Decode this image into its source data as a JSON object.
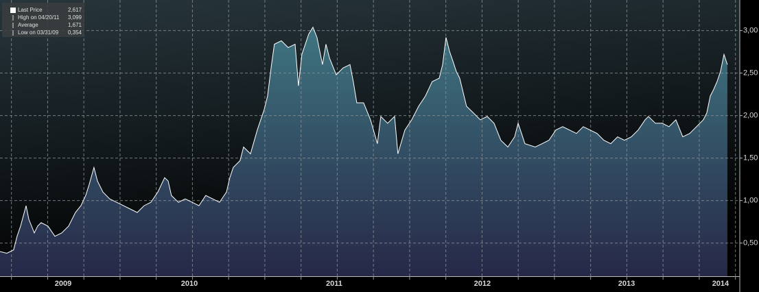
{
  "chart_data": {
    "type": "area",
    "color": "#ffffff",
    "fill_top": "#3f7580",
    "fill_bottom": "#262848",
    "legend": [
      {
        "name": "Last Price",
        "value": 2.617,
        "label": "2,617"
      },
      {
        "name": "High on 04/20/11",
        "value": 3.099,
        "label": "3,099"
      },
      {
        "name": "Average",
        "value": 1.671,
        "label": "1,671"
      },
      {
        "name": "Low on 03/31/09",
        "value": 0.354,
        "label": "0,354"
      }
    ],
    "x": [
      2009.171,
      2009.218,
      2009.265,
      2009.289,
      2009.313,
      2009.351,
      2009.37,
      2009.408,
      2009.431,
      2009.455,
      2009.502,
      2009.55,
      2009.597,
      2009.645,
      2009.692,
      2009.73,
      2009.763,
      2009.787,
      2009.82,
      2009.844,
      2009.882,
      2009.929,
      2009.976,
      2010.024,
      2010.071,
      2010.119,
      2010.166,
      2010.213,
      2010.261,
      2010.308,
      2010.332,
      2010.355,
      2010.403,
      2010.45,
      2010.498,
      2010.545,
      2010.592,
      2010.64,
      2010.687,
      2010.735,
      2010.758,
      2010.782,
      2010.829,
      2010.853,
      2010.901,
      2010.948,
      2010.995,
      2011.019,
      2011.043,
      2011.066,
      2011.114,
      2011.161,
      2011.209,
      2011.232,
      2011.256,
      2011.303,
      2011.332,
      2011.36,
      2011.398,
      2011.422,
      2011.446,
      2011.493,
      2011.54,
      2011.588,
      2011.611,
      2011.635,
      2011.682,
      2011.73,
      2011.777,
      2011.801,
      2011.848,
      2011.896,
      2011.919,
      2011.967,
      2012.014,
      2012.062,
      2012.109,
      2012.156,
      2012.204,
      2012.228,
      2012.251,
      2012.275,
      2012.299,
      2012.322,
      2012.346,
      2012.393,
      2012.441,
      2012.488,
      2012.536,
      2012.583,
      2012.63,
      2012.678,
      2012.725,
      2012.749,
      2012.796,
      2012.867,
      2012.915,
      2012.962,
      2013.01,
      2013.057,
      2013.104,
      2013.152,
      2013.199,
      2013.246,
      2013.294,
      2013.341,
      2013.389,
      2013.436,
      2013.483,
      2013.531,
      2013.578,
      2013.626,
      2013.649,
      2013.697,
      2013.744,
      2013.791,
      2013.839,
      2013.886,
      2013.934,
      2013.981,
      2014.028,
      2014.052,
      2014.076,
      2014.1,
      2014.123,
      2014.147,
      2014.171,
      2014.194
    ],
    "values": [
      0.4,
      0.38,
      0.42,
      0.58,
      0.7,
      0.94,
      0.78,
      0.62,
      0.7,
      0.74,
      0.7,
      0.58,
      0.62,
      0.7,
      0.86,
      0.94,
      1.06,
      1.19,
      1.39,
      1.23,
      1.1,
      1.02,
      0.98,
      0.94,
      0.9,
      0.86,
      0.94,
      0.98,
      1.1,
      1.27,
      1.23,
      1.06,
      0.98,
      1.02,
      0.98,
      0.94,
      1.06,
      1.02,
      0.98,
      1.1,
      1.27,
      1.39,
      1.47,
      1.63,
      1.55,
      1.83,
      2.07,
      2.23,
      2.56,
      2.84,
      2.88,
      2.8,
      2.84,
      2.35,
      2.72,
      2.96,
      3.04,
      2.92,
      2.6,
      2.84,
      2.68,
      2.48,
      2.56,
      2.6,
      2.4,
      2.15,
      2.15,
      1.95,
      1.67,
      1.99,
      1.91,
      1.99,
      1.55,
      1.83,
      1.95,
      2.11,
      2.23,
      2.4,
      2.44,
      2.6,
      2.92,
      2.76,
      2.64,
      2.52,
      2.44,
      2.11,
      2.03,
      1.95,
      1.99,
      1.91,
      1.71,
      1.63,
      1.75,
      1.91,
      1.67,
      1.63,
      1.67,
      1.71,
      1.83,
      1.87,
      1.83,
      1.79,
      1.87,
      1.83,
      1.79,
      1.71,
      1.67,
      1.75,
      1.71,
      1.75,
      1.83,
      1.95,
      1.99,
      1.91,
      1.91,
      1.87,
      1.95,
      1.75,
      1.79,
      1.87,
      1.95,
      2.03,
      2.23,
      2.31,
      2.4,
      2.52,
      2.72,
      2.6
    ],
    "xlim": [
      2009.171,
      2014.28
    ],
    "xticks": [
      {
        "value": 2009.607,
        "label": "2009"
      },
      {
        "value": 2010.479,
        "label": "2010"
      },
      {
        "value": 2011.479,
        "label": "2011"
      },
      {
        "value": 2012.502,
        "label": "2012"
      },
      {
        "value": 2013.498,
        "label": "2013"
      },
      {
        "value": 2014.147,
        "label": "2014"
      }
    ],
    "x_gridlines": [
      2009.25,
      2009.5,
      2009.75,
      2010,
      2010.25,
      2010.5,
      2010.75,
      2011,
      2011.25,
      2011.5,
      2011.75,
      2012,
      2012.25,
      2012.5,
      2012.75,
      2013,
      2013.25,
      2013.5,
      2013.75,
      2014,
      2014.25
    ],
    "ylim": [
      0.11,
      3.36
    ],
    "yticks": [
      {
        "value": 0.5,
        "label": "0,50"
      },
      {
        "value": 1,
        "label": "1,00"
      },
      {
        "value": 1.5,
        "label": "1,50"
      },
      {
        "value": 2,
        "label": "2,00"
      },
      {
        "value": 2.5,
        "label": "2,50"
      },
      {
        "value": 3,
        "label": "3,00"
      }
    ],
    "grid": true
  }
}
